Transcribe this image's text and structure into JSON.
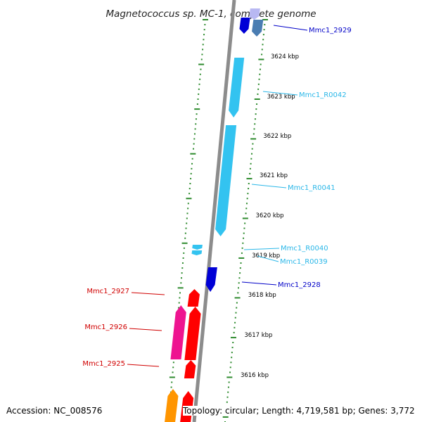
{
  "title": "Magnetococcus sp. MC-1, complete genome",
  "colors": {
    "backbone": "#8c8c8c",
    "gc_dots": "#2e8b2e",
    "dark_blue": "#0000d6",
    "light_blue": "#33c3f0",
    "pale_blue": "#b8b8f2",
    "steel_blue": "#4a7db2",
    "red": "#ff0000",
    "magenta": "#ee1490",
    "orange": "#ff9500",
    "label_dark_blue": "#0000c8",
    "label_light_blue": "#2ab7e8",
    "label_red": "#d00000"
  },
  "ticks": [
    "3624 kbp",
    "3623 kbp",
    "3622 kbp",
    "3621 kbp",
    "3620 kbp",
    "3619 kbp",
    "3618 kbp",
    "3617 kbp",
    "3616 kbp"
  ],
  "gene_labels": [
    {
      "text": "Mmc1_2929",
      "color": "label_dark_blue"
    },
    {
      "text": "Mmc1_R0042",
      "color": "label_light_blue"
    },
    {
      "text": "Mmc1_R0041",
      "color": "label_light_blue"
    },
    {
      "text": "Mmc1_R0040",
      "color": "label_light_blue"
    },
    {
      "text": "Mmc1_R0039",
      "color": "label_light_blue"
    },
    {
      "text": "Mmc1_2928",
      "color": "label_dark_blue"
    },
    {
      "text": "Mmc1_2927",
      "color": "label_red"
    },
    {
      "text": "Mmc1_2926",
      "color": "label_red"
    },
    {
      "text": "Mmc1_2925",
      "color": "label_red"
    }
  ],
  "footer": {
    "accession": "Accession: NC_008576",
    "summary": "Topology: circular; Length: 4,719,581 bp; Genes: 3,772"
  }
}
